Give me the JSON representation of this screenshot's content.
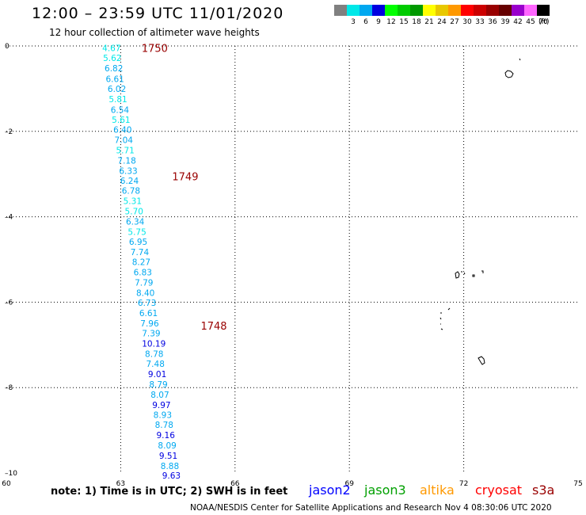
{
  "title": "12:00 – 23:59 UTC 11/01/2020",
  "subtitle": "12 hour collection of altimeter wave heights",
  "scale": {
    "unit": "(ft)",
    "items": [
      {
        "label": "",
        "color": "#808080"
      },
      {
        "label": "3",
        "color": "#00e8e8"
      },
      {
        "label": "6",
        "color": "#00a8f0"
      },
      {
        "label": "9",
        "color": "#0000e0"
      },
      {
        "label": "12",
        "color": "#00ff00"
      },
      {
        "label": "15",
        "color": "#00cc00"
      },
      {
        "label": "18",
        "color": "#009900"
      },
      {
        "label": "21",
        "color": "#ffff00"
      },
      {
        "label": "24",
        "color": "#e8c800"
      },
      {
        "label": "27",
        "color": "#ff9900"
      },
      {
        "label": "30",
        "color": "#ff0000"
      },
      {
        "label": "33",
        "color": "#cc0000"
      },
      {
        "label": "36",
        "color": "#990000"
      },
      {
        "label": "39",
        "color": "#660000"
      },
      {
        "label": "42",
        "color": "#9900cc"
      },
      {
        "label": "45",
        "color": "#ff66ff"
      },
      {
        "label": "70",
        "color": "#000000"
      }
    ]
  },
  "axes": {
    "x_ticks": [
      60,
      63,
      66,
      69,
      72,
      75
    ],
    "y_ticks": [
      0,
      -2,
      -4,
      -6,
      -8,
      -10
    ],
    "x_tick_labels": [
      "60",
      "63",
      "66",
      "69",
      "72",
      "75"
    ],
    "y_tick_labels": [
      "0",
      "–2",
      "–4",
      "–6",
      "–8",
      "–10"
    ],
    "xlim": [
      60,
      75
    ],
    "ylim": [
      -10,
      0
    ],
    "grid": "dotted"
  },
  "time_labels": [
    {
      "text": "1750",
      "lon": 63.55,
      "lat": -0.05
    },
    {
      "text": "1749",
      "lon": 64.35,
      "lat": -3.05
    },
    {
      "text": "1748",
      "lon": 65.1,
      "lat": -6.55
    }
  ],
  "wave_heights": [
    {
      "v": "4.67",
      "lon": 62.76,
      "lat": -0.05,
      "c": "#00e8e8"
    },
    {
      "v": "5.62",
      "lon": 62.78,
      "lat": -0.28,
      "c": "#00e8e8"
    },
    {
      "v": "6.82",
      "lon": 62.82,
      "lat": -0.52,
      "c": "#00a8f0"
    },
    {
      "v": "6.61",
      "lon": 62.85,
      "lat": -0.77,
      "c": "#00a8f0"
    },
    {
      "v": "6.02",
      "lon": 62.9,
      "lat": -1.0,
      "c": "#00a8f0"
    },
    {
      "v": "5.81",
      "lon": 62.93,
      "lat": -1.24,
      "c": "#00e8e8"
    },
    {
      "v": "6.54",
      "lon": 62.98,
      "lat": -1.49,
      "c": "#00a8f0"
    },
    {
      "v": "5.61",
      "lon": 63.01,
      "lat": -1.73,
      "c": "#00e8e8"
    },
    {
      "v": "6.40",
      "lon": 63.05,
      "lat": -1.96,
      "c": "#00a8f0"
    },
    {
      "v": "7.04",
      "lon": 63.08,
      "lat": -2.2,
      "c": "#00a8f0"
    },
    {
      "v": "5.71",
      "lon": 63.12,
      "lat": -2.44,
      "c": "#00e8e8"
    },
    {
      "v": "7.18",
      "lon": 63.16,
      "lat": -2.68,
      "c": "#00a8f0"
    },
    {
      "v": "6.33",
      "lon": 63.2,
      "lat": -2.92,
      "c": "#00a8f0"
    },
    {
      "v": "6.24",
      "lon": 63.23,
      "lat": -3.15,
      "c": "#00a8f0"
    },
    {
      "v": "6.78",
      "lon": 63.27,
      "lat": -3.39,
      "c": "#00a8f0"
    },
    {
      "v": "5.31",
      "lon": 63.31,
      "lat": -3.63,
      "c": "#00e8e8"
    },
    {
      "v": "5.70",
      "lon": 63.35,
      "lat": -3.87,
      "c": "#00e8e8"
    },
    {
      "v": "6.34",
      "lon": 63.38,
      "lat": -4.11,
      "c": "#00a8f0"
    },
    {
      "v": "5.75",
      "lon": 63.43,
      "lat": -4.35,
      "c": "#00e8e8"
    },
    {
      "v": "6.95",
      "lon": 63.46,
      "lat": -4.58,
      "c": "#00a8f0"
    },
    {
      "v": "7.74",
      "lon": 63.5,
      "lat": -4.82,
      "c": "#00a8f0"
    },
    {
      "v": "8.27",
      "lon": 63.54,
      "lat": -5.06,
      "c": "#00a8f0"
    },
    {
      "v": "6.83",
      "lon": 63.58,
      "lat": -5.3,
      "c": "#00a8f0"
    },
    {
      "v": "7.79",
      "lon": 63.61,
      "lat": -5.54,
      "c": "#00a8f0"
    },
    {
      "v": "8.40",
      "lon": 63.65,
      "lat": -5.78,
      "c": "#00a8f0"
    },
    {
      "v": "6.73",
      "lon": 63.69,
      "lat": -6.01,
      "c": "#00a8f0"
    },
    {
      "v": "6.61",
      "lon": 63.73,
      "lat": -6.25,
      "c": "#00a8f0"
    },
    {
      "v": "7.96",
      "lon": 63.76,
      "lat": -6.49,
      "c": "#00a8f0"
    },
    {
      "v": "7.39",
      "lon": 63.8,
      "lat": -6.73,
      "c": "#00a8f0"
    },
    {
      "v": "10.19",
      "lon": 63.87,
      "lat": -6.97,
      "c": "#0000e0"
    },
    {
      "v": "8.78",
      "lon": 63.88,
      "lat": -7.21,
      "c": "#00a8f0"
    },
    {
      "v": "7.48",
      "lon": 63.91,
      "lat": -7.44,
      "c": "#00a8f0"
    },
    {
      "v": "9.01",
      "lon": 63.96,
      "lat": -7.68,
      "c": "#0000e0"
    },
    {
      "v": "8.79",
      "lon": 63.99,
      "lat": -7.92,
      "c": "#00a8f0"
    },
    {
      "v": "8.07",
      "lon": 64.03,
      "lat": -8.16,
      "c": "#00a8f0"
    },
    {
      "v": "9.97",
      "lon": 64.07,
      "lat": -8.4,
      "c": "#0000e0"
    },
    {
      "v": "8.93",
      "lon": 64.1,
      "lat": -8.64,
      "c": "#00a8f0"
    },
    {
      "v": "8.78",
      "lon": 64.14,
      "lat": -8.87,
      "c": "#00a8f0"
    },
    {
      "v": "9.16",
      "lon": 64.18,
      "lat": -9.11,
      "c": "#0000e0"
    },
    {
      "v": "8.09",
      "lon": 64.22,
      "lat": -9.35,
      "c": "#00a8f0"
    },
    {
      "v": "9.51",
      "lon": 64.25,
      "lat": -9.59,
      "c": "#0000e0"
    },
    {
      "v": "8.88",
      "lon": 64.29,
      "lat": -9.83,
      "c": "#00a8f0"
    },
    {
      "v": "9.63",
      "lon": 64.33,
      "lat": -10.06,
      "c": "#0000e0"
    }
  ],
  "footer": {
    "note": "note:  1) Time is in UTC;  2) SWH is in feet",
    "satellites": [
      {
        "name": "jason2",
        "color": "#0000ff"
      },
      {
        "name": "jason3",
        "color": "#00a000"
      },
      {
        "name": "altika",
        "color": "#ff9900"
      },
      {
        "name": "cryosat",
        "color": "#ff0000"
      },
      {
        "name": "s3a",
        "color": "#990000"
      }
    ],
    "credit": "NOAA/NESDIS Center for Satellite Applications and Research    Nov  4 08:30:06 UTC 2020"
  }
}
